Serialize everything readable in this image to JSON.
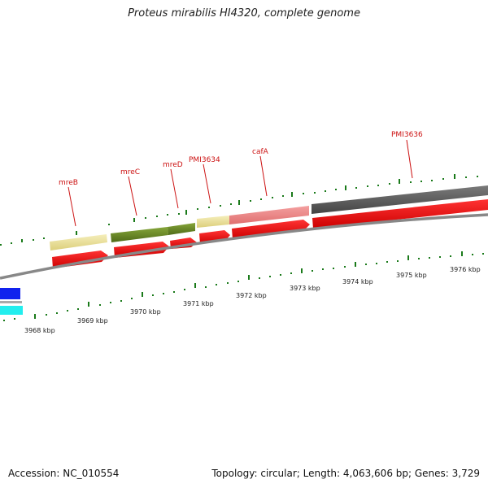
{
  "title": "Proteus mirabilis HI4320, complete genome",
  "accession": "Accession: NC_010554",
  "summary": "Topology: circular; Length: 4,063,606 bp; Genes: 3,729",
  "colors": {
    "cds": "#ee1111",
    "tick": "#1a7a1a",
    "backbone": "#888888",
    "gene_yellow": "#eee4a0",
    "gene_olive": "#6e8f2a",
    "gene_pink": "#ee8888",
    "gene_grey": "#666666",
    "gene_blue": "#1122ee",
    "gene_cyan": "#22eeee"
  },
  "gene_labels": [
    "mreB",
    "mreC",
    "mreD",
    "PMI3634",
    "cafA",
    "PMI3636"
  ],
  "kbp_labels": [
    "3968 kbp",
    "3969 kbp",
    "3970 kbp",
    "3971 kbp",
    "3972 kbp",
    "3973 kbp",
    "3974 kbp",
    "3975 kbp",
    "3976 kbp"
  ]
}
